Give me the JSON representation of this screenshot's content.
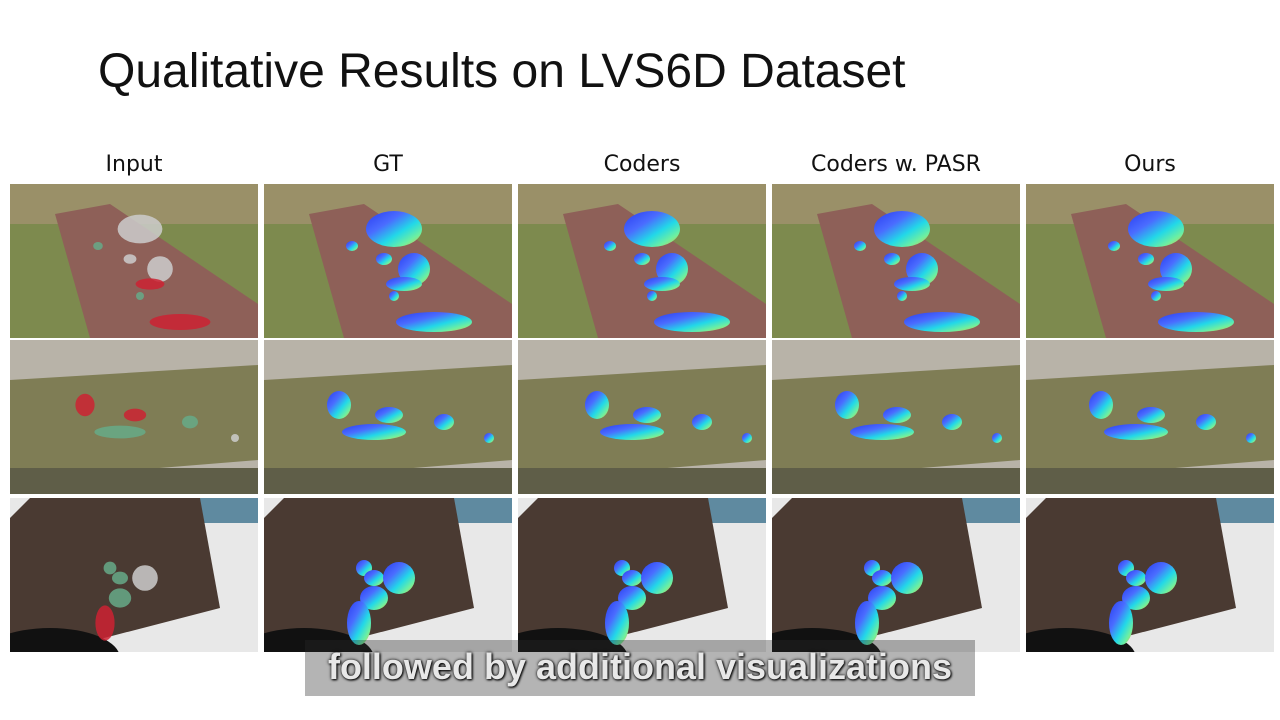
{
  "title": "Qualitative Results on LVS6D Dataset",
  "columns": [
    "Input",
    "GT",
    "Coders",
    "Coders w. PASR",
    "Ours"
  ],
  "caption": "followed by additional visualizations"
}
